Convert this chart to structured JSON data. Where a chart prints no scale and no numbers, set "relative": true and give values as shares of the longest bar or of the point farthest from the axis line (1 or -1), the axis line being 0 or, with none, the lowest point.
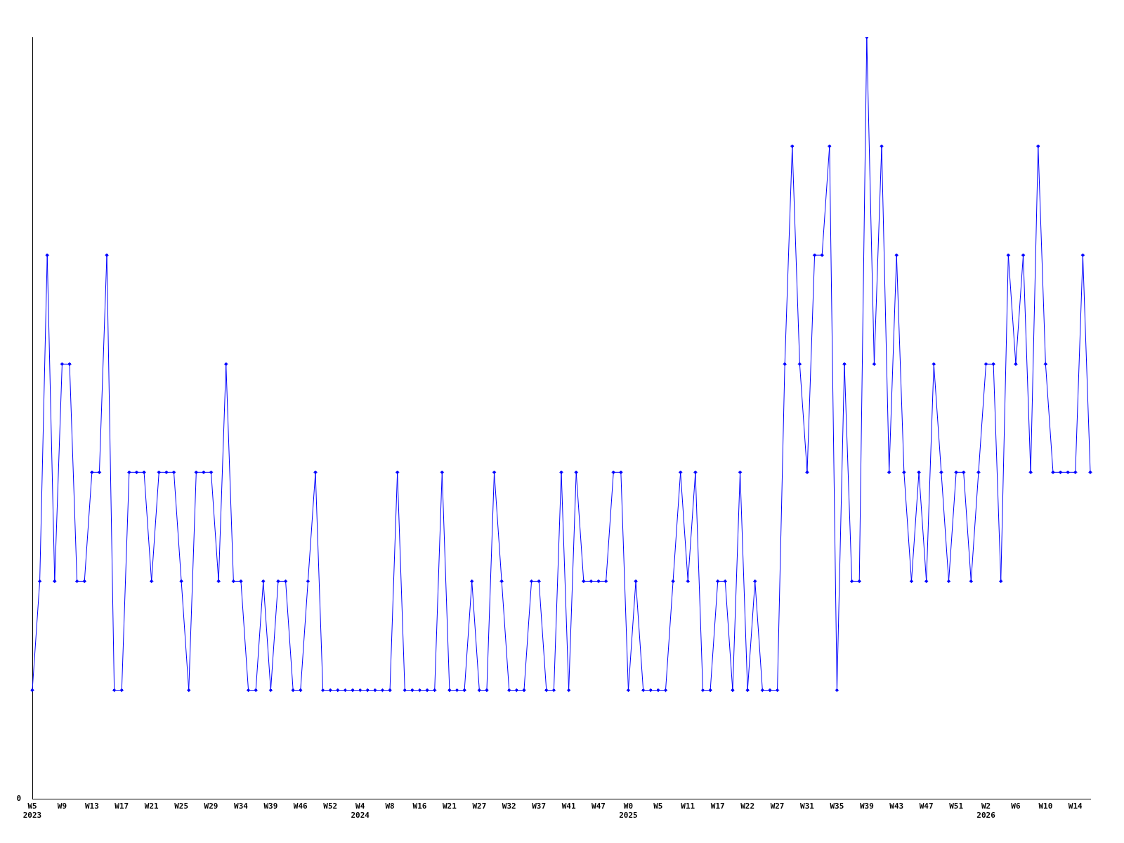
{
  "chart_data": {
    "type": "line",
    "relative": true,
    "color": "#0000ff",
    "marker": "diamond",
    "grid": false,
    "legend": false,
    "annotations": [
      "0"
    ],
    "categories": [
      "W5\n2023",
      null,
      null,
      null,
      "W9",
      null,
      null,
      null,
      "W13",
      null,
      null,
      null,
      "W17",
      null,
      null,
      null,
      "W21",
      null,
      null,
      null,
      "W25",
      null,
      null,
      null,
      "W29",
      null,
      null,
      null,
      "W34",
      null,
      null,
      null,
      "W39",
      null,
      null,
      null,
      "W46",
      null,
      null,
      null,
      "W52",
      null,
      null,
      null,
      "W4\n2024",
      null,
      null,
      null,
      "W8",
      null,
      null,
      null,
      "W16",
      null,
      null,
      null,
      "W21",
      null,
      null,
      null,
      "W27",
      null,
      null,
      null,
      "W32",
      null,
      null,
      null,
      "W37",
      null,
      null,
      null,
      "W41",
      null,
      null,
      null,
      "W47",
      null,
      null,
      null,
      "W0\n2025",
      null,
      null,
      null,
      "W5",
      null,
      null,
      null,
      "W11",
      null,
      null,
      null,
      "W17",
      null,
      null,
      null,
      "W22",
      null,
      null,
      null,
      "W27",
      null,
      null,
      null,
      "W31",
      null,
      null,
      null,
      "W35",
      null,
      null,
      null,
      "W39",
      null,
      null,
      null,
      "W43",
      null,
      null,
      null,
      "W47",
      null,
      null,
      null,
      "W51",
      null,
      null,
      null,
      "W2\n2026",
      null,
      null,
      null,
      "W6",
      null,
      null,
      null,
      "W10",
      null,
      null,
      null,
      "W14",
      null,
      null
    ],
    "values": [
      0.143,
      0.286,
      0.714,
      0.286,
      0.571,
      0.571,
      0.286,
      0.286,
      0.429,
      0.429,
      0.714,
      0.143,
      0.143,
      0.429,
      0.429,
      0.429,
      0.286,
      0.429,
      0.429,
      0.429,
      0.286,
      0.143,
      0.429,
      0.429,
      0.429,
      0.286,
      0.571,
      0.286,
      0.286,
      0.143,
      0.143,
      0.286,
      0.143,
      0.286,
      0.286,
      0.143,
      0.143,
      0.286,
      0.429,
      0.143,
      0.143,
      0.143,
      0.143,
      0.143,
      0.143,
      0.143,
      0.143,
      0.143,
      0.143,
      0.429,
      0.143,
      0.143,
      0.143,
      0.143,
      0.143,
      0.429,
      0.143,
      0.143,
      0.143,
      0.286,
      0.143,
      0.143,
      0.429,
      0.286,
      0.143,
      0.143,
      0.143,
      0.286,
      0.286,
      0.143,
      0.143,
      0.429,
      0.143,
      0.429,
      0.286,
      0.286,
      0.286,
      0.286,
      0.429,
      0.429,
      0.143,
      0.286,
      0.143,
      0.143,
      0.143,
      0.143,
      0.286,
      0.429,
      0.286,
      0.429,
      0.143,
      0.143,
      0.286,
      0.286,
      0.143,
      0.429,
      0.143,
      0.286,
      0.143,
      0.143,
      0.143,
      0.571,
      0.857,
      0.571,
      0.429,
      0.714,
      0.714,
      0.857,
      0.143,
      0.571,
      0.286,
      0.286,
      1,
      0.571,
      0.857,
      0.429,
      0.714,
      0.429,
      0.286,
      0.429,
      0.286,
      0.571,
      0.429,
      0.286,
      0.429,
      0.429,
      0.286,
      0.429,
      0.571,
      0.571,
      0.286,
      0.714,
      0.571,
      0.714,
      0.429,
      0.857,
      0.571,
      0.429,
      0.429,
      0.429,
      0.429,
      0.714,
      0.429
    ]
  }
}
